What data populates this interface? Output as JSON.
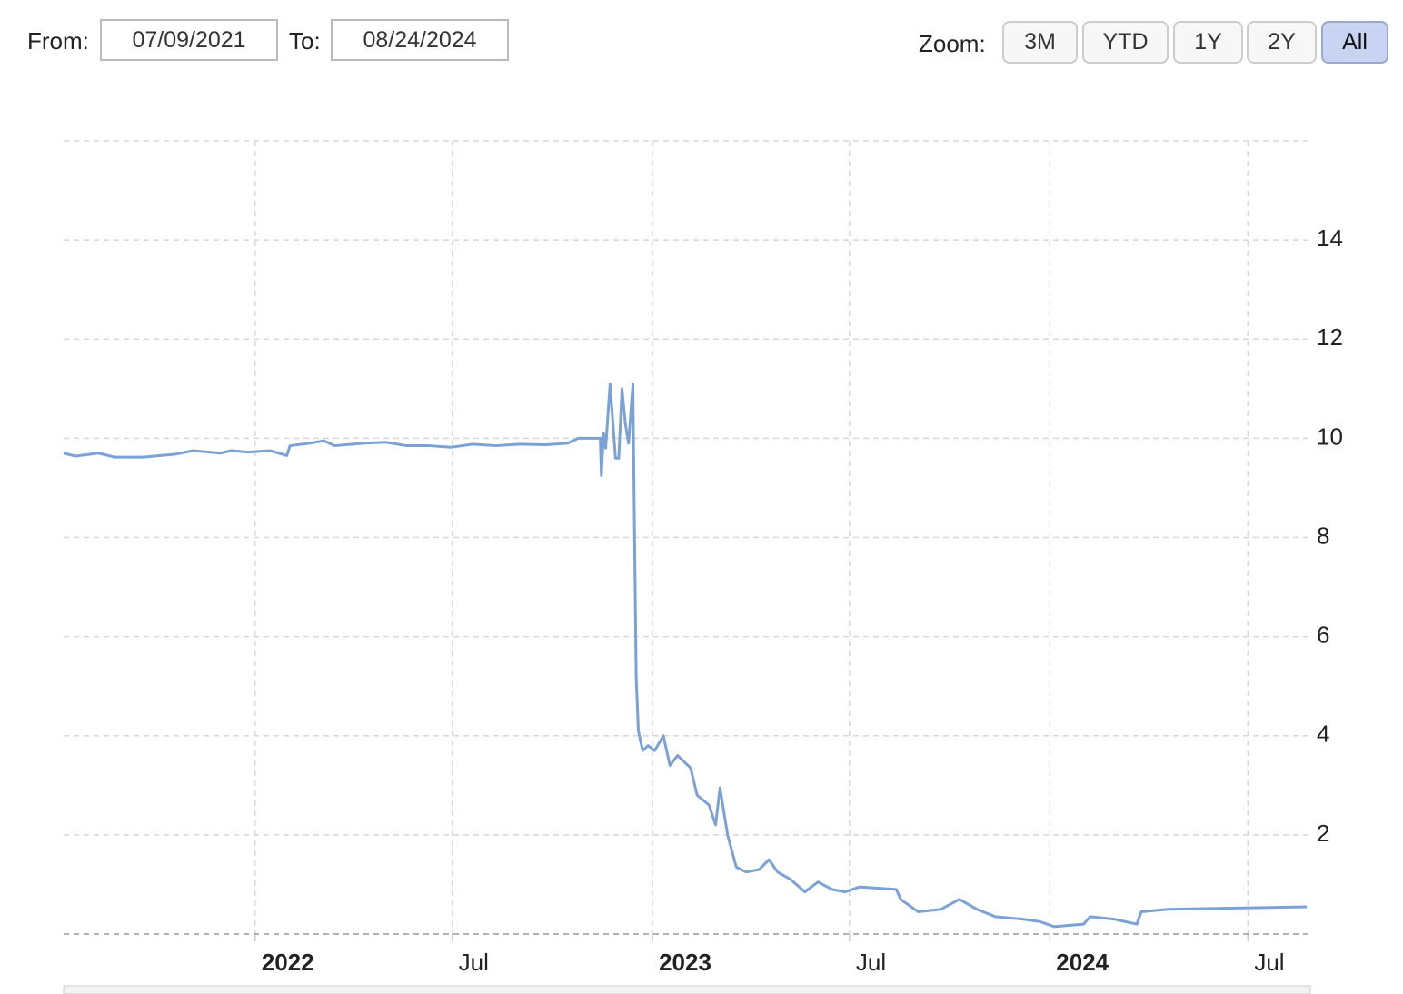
{
  "range_selector": {
    "from_label": "From:",
    "from": "07/09/2021",
    "to_label": "To:",
    "to": "08/24/2024",
    "zoom_label": "Zoom:",
    "buttons": [
      "3M",
      "YTD",
      "1Y",
      "2Y",
      "All"
    ],
    "selected": 4
  },
  "chart_data": {
    "type": "line",
    "color": "#7ba2d6",
    "grid": true,
    "xlim": [
      "2021-07-09",
      "2024-08-24"
    ],
    "ylim": [
      0,
      16
    ],
    "yticks": [
      2,
      4,
      6,
      8,
      10,
      12,
      14
    ],
    "xticks": [
      {
        "value": "2022-01-01",
        "label": "2022"
      },
      {
        "value": "2022-07-01",
        "label": "Jul"
      },
      {
        "value": "2023-01-01",
        "label": "2023"
      },
      {
        "value": "2023-07-01",
        "label": "Jul"
      },
      {
        "value": "2024-01-01",
        "label": "2024"
      },
      {
        "value": "2024-07-01",
        "label": "Jul"
      }
    ],
    "x": [
      "2021-07-09",
      "2021-07-20",
      "2021-08-10",
      "2021-08-25",
      "2021-09-20",
      "2021-10-20",
      "2021-11-05",
      "2021-11-30",
      "2021-12-10",
      "2021-12-25",
      "2022-01-15",
      "2022-01-30",
      "2022-02-02",
      "2022-02-20",
      "2022-03-05",
      "2022-03-15",
      "2022-04-10",
      "2022-05-01",
      "2022-05-20",
      "2022-06-10",
      "2022-06-30",
      "2022-07-20",
      "2022-08-10",
      "2022-09-01",
      "2022-09-25",
      "2022-10-15",
      "2022-10-25",
      "2022-11-14",
      "2022-11-15",
      "2022-11-17",
      "2022-11-19",
      "2022-11-23",
      "2022-11-28",
      "2022-12-01",
      "2022-12-04",
      "2022-12-07",
      "2022-12-10",
      "2022-12-14",
      "2022-12-15",
      "2022-12-17",
      "2022-12-19",
      "2022-12-23",
      "2022-12-28",
      "2023-01-03",
      "2023-01-11",
      "2023-01-17",
      "2023-01-24",
      "2023-02-05",
      "2023-02-11",
      "2023-02-22",
      "2023-02-28",
      "2023-03-04",
      "2023-03-11",
      "2023-03-19",
      "2023-03-28",
      "2023-04-09",
      "2023-04-18",
      "2023-04-26",
      "2023-05-08",
      "2023-05-21",
      "2023-06-02",
      "2023-06-15",
      "2023-06-27",
      "2023-07-10",
      "2023-08-13",
      "2023-08-17",
      "2023-09-02",
      "2023-09-23",
      "2023-10-10",
      "2023-10-26",
      "2023-11-12",
      "2023-12-07",
      "2023-12-23",
      "2024-01-05",
      "2024-02-01",
      "2024-02-07",
      "2024-02-29",
      "2024-03-21",
      "2024-03-25",
      "2024-04-19",
      "2024-06-08",
      "2024-08-24"
    ],
    "values": [
      9.7,
      9.64,
      9.7,
      9.62,
      9.62,
      9.68,
      9.75,
      9.7,
      9.75,
      9.72,
      9.75,
      9.65,
      9.85,
      9.9,
      9.95,
      9.85,
      9.9,
      9.92,
      9.85,
      9.85,
      9.82,
      9.88,
      9.85,
      9.88,
      9.87,
      9.9,
      10.0,
      10.0,
      9.25,
      10.1,
      9.8,
      11.1,
      9.6,
      9.6,
      11.0,
      10.3,
      9.9,
      11.1,
      9.0,
      5.2,
      4.1,
      3.7,
      3.8,
      3.7,
      4.0,
      3.4,
      3.6,
      3.35,
      2.8,
      2.6,
      2.2,
      2.95,
      2.0,
      1.35,
      1.25,
      1.3,
      1.5,
      1.25,
      1.1,
      0.85,
      1.05,
      0.9,
      0.85,
      0.95,
      0.9,
      0.7,
      0.45,
      0.5,
      0.7,
      0.5,
      0.35,
      0.3,
      0.25,
      0.15,
      0.2,
      0.35,
      0.3,
      0.2,
      0.45,
      0.5,
      0.52,
      0.55
    ]
  }
}
